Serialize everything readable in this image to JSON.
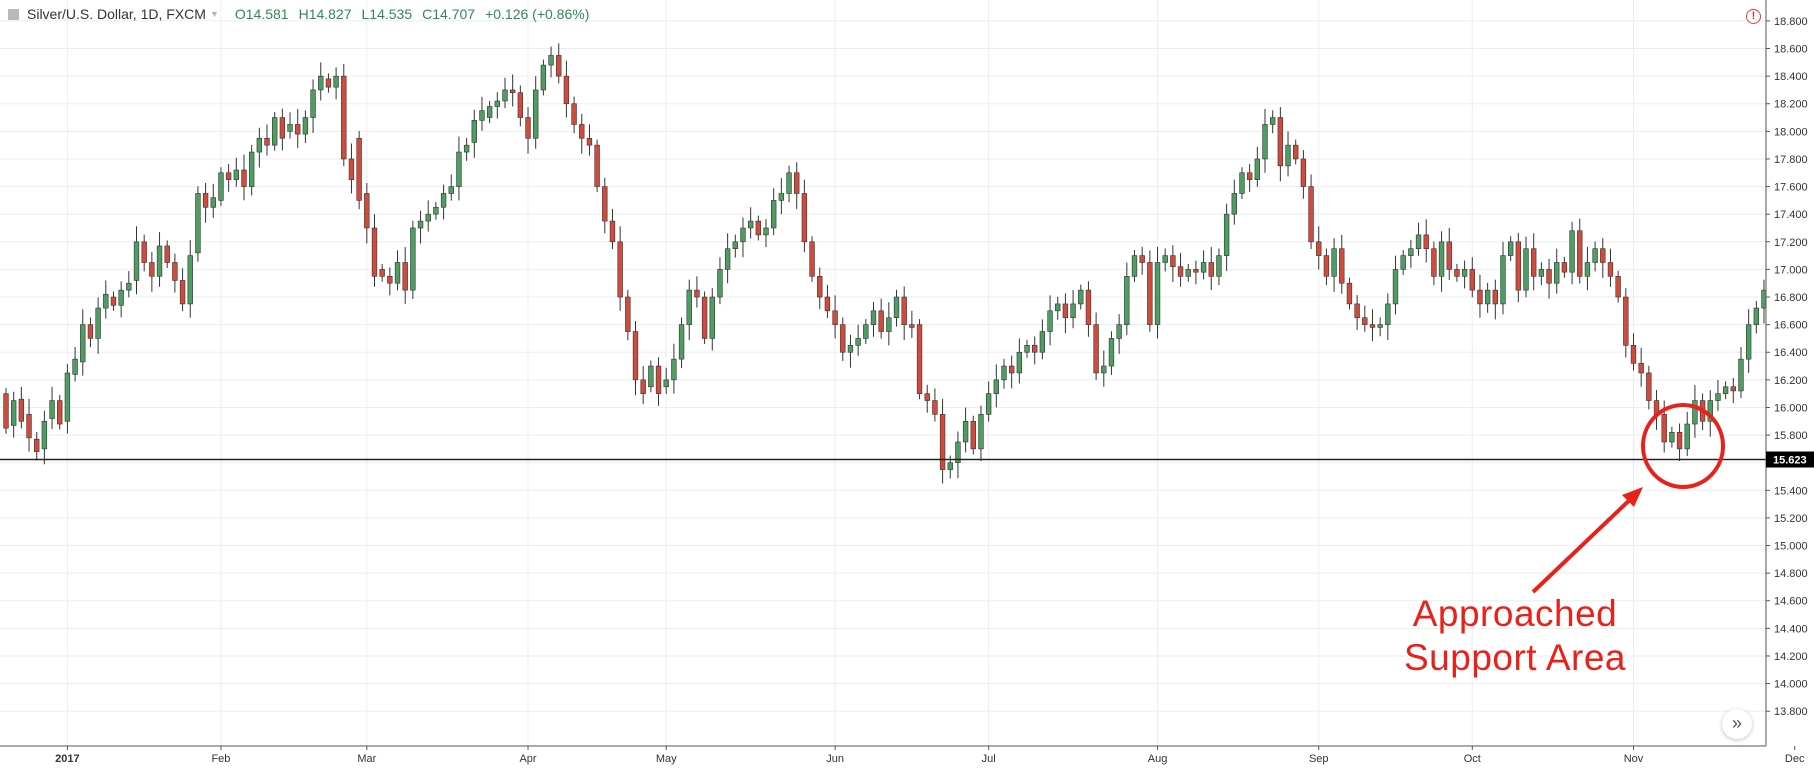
{
  "header": {
    "symbol": "Silver/U.S. Dollar, 1D, FXCM",
    "open": "O14.581",
    "high": "H14.827",
    "low": "L14.535",
    "close": "C14.707",
    "change": "+0.126 (+0.86%)"
  },
  "colors": {
    "up": "#4e9d62",
    "down": "#d14b3c",
    "grid": "#eeeeee",
    "support_line": "#222222",
    "annotation": "#e8221b"
  },
  "annotation": {
    "line1": "Approached",
    "line2": "Support Area"
  },
  "icons": {
    "alert": "alert-icon",
    "scroll": "chevron-double-right-icon"
  },
  "chart_data": {
    "type": "candlestick",
    "y_range": [
      13.7,
      18.85
    ],
    "y_ticks": [
      13.8,
      14.0,
      14.2,
      14.4,
      14.6,
      14.8,
      15.0,
      15.2,
      15.4,
      15.6,
      15.8,
      16.0,
      16.2,
      16.4,
      16.6,
      16.8,
      17.0,
      17.2,
      17.4,
      17.6,
      17.8,
      18.0,
      18.2,
      18.4,
      18.6,
      18.8
    ],
    "y_tick_labels": [
      "13.800",
      "14.000",
      "14.200",
      "14.400",
      "14.600",
      "14.800",
      "15.000",
      "15.200",
      "15.400",
      "15.600",
      "15.800",
      "16.000",
      "16.200",
      "16.400",
      "16.600",
      "16.800",
      "17.000",
      "17.200",
      "17.400",
      "17.600",
      "17.800",
      "18.000",
      "18.200",
      "18.400",
      "18.600",
      "18.800"
    ],
    "x_labels": [
      "2017",
      "Feb",
      "Mar",
      "Apr",
      "May",
      "Jun",
      "Jul",
      "Aug",
      "Sep",
      "Oct",
      "Nov",
      "Dec"
    ],
    "x_label_bar_index": [
      8,
      28,
      47,
      68,
      86,
      108,
      128,
      150,
      171,
      191,
      212,
      233
    ],
    "support_level": 15.623,
    "support_label": "15.623",
    "grid": true,
    "candles": [
      [
        16.1,
        15.85
      ],
      [
        15.87,
        16.05
      ],
      [
        16.06,
        15.9
      ],
      [
        15.95,
        15.78
      ],
      [
        15.77,
        15.68
      ],
      [
        15.7,
        15.9
      ],
      [
        15.92,
        16.05
      ],
      [
        16.05,
        15.88
      ],
      [
        15.9,
        16.25
      ],
      [
        16.24,
        16.35
      ],
      [
        16.33,
        16.6
      ],
      [
        16.6,
        16.5
      ],
      [
        16.5,
        16.72
      ],
      [
        16.72,
        16.82
      ],
      [
        16.8,
        16.74
      ],
      [
        16.74,
        16.85
      ],
      [
        16.85,
        16.9
      ],
      [
        16.92,
        17.2
      ],
      [
        17.2,
        17.05
      ],
      [
        17.05,
        16.95
      ],
      [
        16.95,
        17.17
      ],
      [
        17.17,
        17.05
      ],
      [
        17.05,
        16.92
      ],
      [
        16.92,
        16.75
      ],
      [
        16.75,
        17.1
      ],
      [
        17.12,
        17.55
      ],
      [
        17.55,
        17.45
      ],
      [
        17.45,
        17.52
      ],
      [
        17.5,
        17.7
      ],
      [
        17.7,
        17.65
      ],
      [
        17.65,
        17.72
      ],
      [
        17.72,
        17.6
      ],
      [
        17.6,
        17.85
      ],
      [
        17.85,
        17.95
      ],
      [
        17.95,
        17.9
      ],
      [
        17.9,
        18.1
      ],
      [
        18.1,
        17.95
      ],
      [
        18.0,
        18.05
      ],
      [
        18.05,
        17.98
      ],
      [
        17.98,
        18.1
      ],
      [
        18.1,
        18.3
      ],
      [
        18.3,
        18.4
      ],
      [
        18.38,
        18.32
      ],
      [
        18.32,
        18.4
      ],
      [
        18.4,
        17.8
      ],
      [
        17.8,
        17.65
      ],
      [
        17.95,
        17.5
      ],
      [
        17.55,
        17.3
      ],
      [
        17.3,
        16.95
      ],
      [
        17.0,
        16.95
      ],
      [
        16.95,
        16.9
      ],
      [
        16.9,
        17.05
      ],
      [
        17.05,
        16.85
      ],
      [
        16.85,
        17.3
      ],
      [
        17.3,
        17.35
      ],
      [
        17.35,
        17.4
      ],
      [
        17.4,
        17.45
      ],
      [
        17.45,
        17.55
      ],
      [
        17.55,
        17.6
      ],
      [
        17.6,
        17.85
      ],
      [
        17.85,
        17.9
      ],
      [
        17.92,
        18.08
      ],
      [
        18.08,
        18.15
      ],
      [
        18.1,
        18.18
      ],
      [
        18.18,
        18.22
      ],
      [
        18.22,
        18.3
      ],
      [
        18.3,
        18.28
      ],
      [
        18.28,
        18.1
      ],
      [
        18.1,
        17.95
      ],
      [
        17.95,
        18.3
      ],
      [
        18.3,
        18.48
      ],
      [
        18.48,
        18.55
      ],
      [
        18.55,
        18.4
      ],
      [
        18.4,
        18.2
      ],
      [
        18.2,
        18.05
      ],
      [
        18.05,
        17.95
      ],
      [
        17.95,
        17.9
      ],
      [
        17.9,
        17.6
      ],
      [
        17.6,
        17.35
      ],
      [
        17.35,
        17.2
      ],
      [
        17.2,
        16.8
      ],
      [
        16.8,
        16.55
      ],
      [
        16.55,
        16.2
      ],
      [
        16.2,
        16.1
      ],
      [
        16.15,
        16.3
      ],
      [
        16.3,
        16.1
      ],
      [
        16.15,
        16.2
      ],
      [
        16.2,
        16.35
      ],
      [
        16.35,
        16.6
      ],
      [
        16.6,
        16.85
      ],
      [
        16.85,
        16.8
      ],
      [
        16.8,
        16.5
      ],
      [
        16.5,
        16.8
      ],
      [
        16.8,
        17.0
      ],
      [
        17.0,
        17.15
      ],
      [
        17.15,
        17.2
      ],
      [
        17.2,
        17.3
      ],
      [
        17.3,
        17.35
      ],
      [
        17.35,
        17.25
      ],
      [
        17.25,
        17.3
      ],
      [
        17.3,
        17.5
      ],
      [
        17.5,
        17.55
      ],
      [
        17.55,
        17.7
      ],
      [
        17.7,
        17.55
      ],
      [
        17.55,
        17.2
      ],
      [
        17.2,
        16.95
      ],
      [
        16.95,
        16.8
      ],
      [
        16.8,
        16.7
      ],
      [
        16.7,
        16.6
      ],
      [
        16.6,
        16.4
      ],
      [
        16.4,
        16.45
      ],
      [
        16.45,
        16.5
      ],
      [
        16.5,
        16.6
      ],
      [
        16.6,
        16.7
      ],
      [
        16.7,
        16.55
      ],
      [
        16.55,
        16.65
      ],
      [
        16.65,
        16.8
      ],
      [
        16.8,
        16.6
      ],
      [
        16.6,
        16.58
      ],
      [
        16.6,
        16.1
      ],
      [
        16.1,
        16.05
      ],
      [
        16.05,
        15.95
      ],
      [
        15.95,
        15.55
      ],
      [
        15.55,
        15.6
      ],
      [
        15.6,
        15.75
      ],
      [
        15.75,
        15.9
      ],
      [
        15.9,
        15.7
      ],
      [
        15.7,
        15.95
      ],
      [
        15.95,
        16.1
      ],
      [
        16.1,
        16.2
      ],
      [
        16.2,
        16.3
      ],
      [
        16.3,
        16.25
      ],
      [
        16.25,
        16.4
      ],
      [
        16.4,
        16.45
      ],
      [
        16.45,
        16.4
      ],
      [
        16.4,
        16.55
      ],
      [
        16.55,
        16.7
      ],
      [
        16.7,
        16.75
      ],
      [
        16.75,
        16.65
      ],
      [
        16.65,
        16.75
      ],
      [
        16.75,
        16.85
      ],
      [
        16.85,
        16.6
      ],
      [
        16.6,
        16.25
      ],
      [
        16.25,
        16.3
      ],
      [
        16.3,
        16.5
      ],
      [
        16.5,
        16.6
      ],
      [
        16.6,
        16.95
      ],
      [
        16.95,
        17.1
      ],
      [
        17.1,
        17.05
      ],
      [
        17.05,
        16.6
      ],
      [
        16.6,
        17.05
      ],
      [
        17.05,
        17.1
      ],
      [
        17.1,
        17.02
      ],
      [
        17.02,
        16.95
      ],
      [
        16.95,
        17.0
      ],
      [
        17.0,
        16.98
      ],
      [
        16.98,
        17.05
      ],
      [
        17.05,
        16.95
      ],
      [
        16.95,
        17.1
      ],
      [
        17.1,
        17.4
      ],
      [
        17.4,
        17.55
      ],
      [
        17.55,
        17.7
      ],
      [
        17.7,
        17.65
      ],
      [
        17.65,
        17.8
      ],
      [
        17.8,
        18.05
      ],
      [
        18.05,
        18.1
      ],
      [
        18.1,
        17.75
      ],
      [
        17.75,
        17.9
      ],
      [
        17.9,
        17.8
      ],
      [
        17.8,
        17.6
      ],
      [
        17.6,
        17.2
      ],
      [
        17.2,
        17.1
      ],
      [
        17.1,
        16.95
      ],
      [
        16.95,
        17.15
      ],
      [
        17.15,
        16.9
      ],
      [
        16.9,
        16.75
      ],
      [
        16.75,
        16.65
      ],
      [
        16.65,
        16.6
      ],
      [
        16.6,
        16.58
      ],
      [
        16.58,
        16.6
      ],
      [
        16.6,
        16.75
      ],
      [
        16.75,
        17.0
      ],
      [
        17.0,
        17.1
      ],
      [
        17.1,
        17.15
      ],
      [
        17.15,
        17.25
      ],
      [
        17.25,
        17.15
      ],
      [
        17.15,
        16.95
      ],
      [
        16.95,
        17.2
      ],
      [
        17.2,
        17.0
      ],
      [
        17.0,
        16.95
      ],
      [
        16.95,
        17.0
      ],
      [
        17.0,
        16.85
      ],
      [
        16.85,
        16.75
      ],
      [
        16.75,
        16.85
      ],
      [
        16.85,
        16.75
      ],
      [
        16.75,
        17.1
      ],
      [
        17.1,
        17.2
      ],
      [
        17.2,
        16.85
      ],
      [
        16.85,
        17.15
      ],
      [
        17.15,
        16.95
      ],
      [
        16.95,
        17.0
      ],
      [
        17.0,
        16.9
      ],
      [
        16.9,
        17.05
      ],
      [
        17.05,
        16.98
      ],
      [
        16.98,
        17.28
      ],
      [
        17.28,
        16.95
      ],
      [
        16.95,
        17.05
      ],
      [
        17.05,
        17.15
      ],
      [
        17.15,
        17.05
      ],
      [
        17.05,
        16.95
      ],
      [
        16.95,
        16.8
      ],
      [
        16.8,
        16.45
      ],
      [
        16.45,
        16.32
      ],
      [
        16.32,
        16.25
      ],
      [
        16.25,
        16.05
      ],
      [
        16.05,
        15.95
      ],
      [
        15.95,
        15.75
      ],
      [
        15.75,
        15.82
      ],
      [
        15.82,
        15.7
      ],
      [
        15.7,
        15.88
      ],
      [
        15.88,
        16.05
      ],
      [
        16.05,
        15.9
      ],
      [
        15.9,
        16.05
      ],
      [
        16.05,
        16.1
      ],
      [
        16.1,
        16.15
      ],
      [
        16.15,
        16.12
      ],
      [
        16.12,
        16.35
      ],
      [
        16.35,
        16.6
      ],
      [
        16.6,
        16.72
      ],
      [
        16.72,
        16.85
      ]
    ]
  }
}
